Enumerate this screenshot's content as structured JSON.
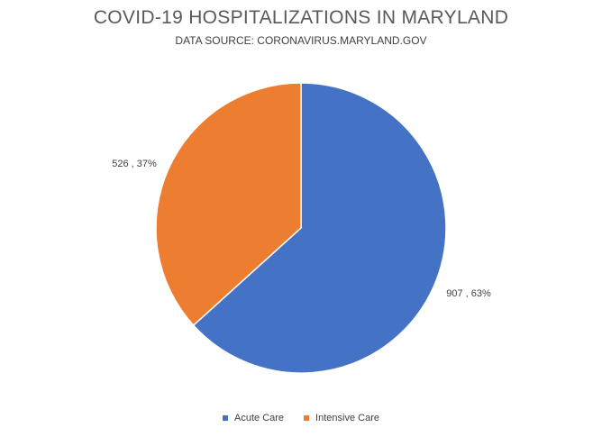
{
  "chart_data": {
    "type": "pie",
    "title": "COVID-19 HOSPITALIZATIONS IN MARYLAND",
    "subtitle": "DATA SOURCE: CORONAVIRUS.MARYLAND.GOV",
    "categories": [
      "Acute Care",
      "Intensive Care"
    ],
    "values": [
      907,
      526
    ],
    "percent_labels": [
      "63%",
      "37%"
    ],
    "data_labels": [
      "907 , 63%",
      "526 , 37%"
    ],
    "colors": [
      "#4472C4",
      "#ED7D31"
    ],
    "legend_position": "bottom",
    "start_angle": "12 o'clock, clockwise"
  }
}
